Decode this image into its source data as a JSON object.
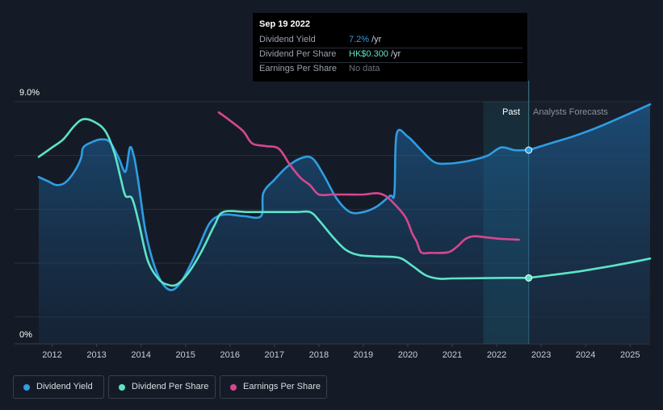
{
  "tooltip": {
    "date": "Sep 19 2022",
    "rows": [
      {
        "label": "Dividend Yield",
        "value": "7.2%",
        "unit": "/yr",
        "color": "#2f9de4"
      },
      {
        "label": "Dividend Per Share",
        "value": "HK$0.300",
        "unit": "/yr",
        "color": "#5de4c7"
      },
      {
        "label": "Earnings Per Share",
        "value": "No data",
        "unit": "",
        "color": "#6b7280"
      }
    ]
  },
  "legend": [
    {
      "label": "Dividend Yield",
      "color": "#2f9de4"
    },
    {
      "label": "Dividend Per Share",
      "color": "#5de4c7"
    },
    {
      "label": "Earnings Per Share",
      "color": "#d6478f"
    }
  ],
  "chart_data": {
    "type": "line",
    "y_top_label": "9.0%",
    "y_bottom_label": "0%",
    "ylim": [
      0,
      9
    ],
    "xlim": [
      2011.7,
      2025.45
    ],
    "x_ticks": [
      "2012",
      "2013",
      "2014",
      "2015",
      "2016",
      "2017",
      "2018",
      "2019",
      "2020",
      "2021",
      "2022",
      "2023",
      "2024",
      "2025"
    ],
    "past_label": "Past",
    "forecast_label": "Analysts Forecasts",
    "forecast_band_start": 2021.7,
    "divider_x": 2022.72,
    "series": [
      {
        "name": "Dividend Yield",
        "color": "#2f9de4",
        "fill": true,
        "points": [
          [
            2011.7,
            6.2
          ],
          [
            2011.9,
            6.05
          ],
          [
            2012.1,
            5.9
          ],
          [
            2012.3,
            6.0
          ],
          [
            2012.5,
            6.4
          ],
          [
            2012.65,
            6.9
          ],
          [
            2012.7,
            7.3
          ],
          [
            2012.9,
            7.5
          ],
          [
            2013.1,
            7.6
          ],
          [
            2013.3,
            7.5
          ],
          [
            2013.5,
            6.9
          ],
          [
            2013.65,
            6.4
          ],
          [
            2013.75,
            7.3
          ],
          [
            2013.85,
            6.9
          ],
          [
            2013.95,
            5.9
          ],
          [
            2014.1,
            4.2
          ],
          [
            2014.3,
            2.9
          ],
          [
            2014.5,
            2.2
          ],
          [
            2014.7,
            2.0
          ],
          [
            2014.9,
            2.3
          ],
          [
            2015.1,
            2.9
          ],
          [
            2015.3,
            3.6
          ],
          [
            2015.55,
            4.5
          ],
          [
            2015.85,
            4.8
          ],
          [
            2016.3,
            4.75
          ],
          [
            2016.7,
            4.75
          ],
          [
            2016.75,
            5.6
          ],
          [
            2017.0,
            6.1
          ],
          [
            2017.3,
            6.6
          ],
          [
            2017.6,
            6.9
          ],
          [
            2017.85,
            6.9
          ],
          [
            2018.1,
            6.3
          ],
          [
            2018.4,
            5.4
          ],
          [
            2018.7,
            4.9
          ],
          [
            2019.0,
            4.9
          ],
          [
            2019.3,
            5.1
          ],
          [
            2019.6,
            5.5
          ],
          [
            2019.7,
            5.6
          ],
          [
            2019.75,
            7.8
          ],
          [
            2020.0,
            7.7
          ],
          [
            2020.3,
            7.2
          ],
          [
            2020.6,
            6.75
          ],
          [
            2020.9,
            6.7
          ],
          [
            2021.2,
            6.75
          ],
          [
            2021.5,
            6.85
          ],
          [
            2021.8,
            7.0
          ],
          [
            2022.1,
            7.3
          ],
          [
            2022.4,
            7.2
          ],
          [
            2022.72,
            7.2
          ]
        ],
        "forecast_points": [
          [
            2022.72,
            7.2
          ],
          [
            2023.2,
            7.45
          ],
          [
            2023.7,
            7.7
          ],
          [
            2024.2,
            8.0
          ],
          [
            2024.7,
            8.35
          ],
          [
            2025.45,
            8.9
          ]
        ],
        "marker": [
          2022.72,
          7.2
        ]
      },
      {
        "name": "Dividend Per Share",
        "color": "#5de4c7",
        "fill": false,
        "points": [
          [
            2011.7,
            6.95
          ],
          [
            2012.0,
            7.3
          ],
          [
            2012.25,
            7.6
          ],
          [
            2012.5,
            8.1
          ],
          [
            2012.7,
            8.35
          ],
          [
            2012.95,
            8.25
          ],
          [
            2013.2,
            7.9
          ],
          [
            2013.4,
            7.1
          ],
          [
            2013.55,
            6.1
          ],
          [
            2013.65,
            5.5
          ],
          [
            2013.8,
            5.4
          ],
          [
            2013.95,
            4.5
          ],
          [
            2014.15,
            3.1
          ],
          [
            2014.4,
            2.4
          ],
          [
            2014.6,
            2.2
          ],
          [
            2014.8,
            2.2
          ],
          [
            2015.05,
            2.6
          ],
          [
            2015.35,
            3.4
          ],
          [
            2015.65,
            4.4
          ],
          [
            2015.85,
            4.9
          ],
          [
            2016.4,
            4.9
          ],
          [
            2017.0,
            4.9
          ],
          [
            2017.5,
            4.9
          ],
          [
            2017.8,
            4.9
          ],
          [
            2018.0,
            4.6
          ],
          [
            2018.3,
            4.0
          ],
          [
            2018.6,
            3.5
          ],
          [
            2018.9,
            3.3
          ],
          [
            2019.3,
            3.25
          ],
          [
            2019.8,
            3.2
          ],
          [
            2020.1,
            2.9
          ],
          [
            2020.4,
            2.55
          ],
          [
            2020.7,
            2.42
          ],
          [
            2021.0,
            2.43
          ],
          [
            2021.6,
            2.44
          ],
          [
            2022.2,
            2.45
          ],
          [
            2022.72,
            2.45
          ]
        ],
        "forecast_points": [
          [
            2022.72,
            2.45
          ],
          [
            2023.2,
            2.55
          ],
          [
            2023.8,
            2.68
          ],
          [
            2024.4,
            2.84
          ],
          [
            2025.0,
            3.02
          ],
          [
            2025.45,
            3.17
          ]
        ],
        "marker": [
          2022.72,
          2.45
        ]
      },
      {
        "name": "Earnings Per Share",
        "color": "#d6478f",
        "fill": false,
        "points": [
          [
            2015.75,
            8.6
          ],
          [
            2016.0,
            8.3
          ],
          [
            2016.3,
            7.9
          ],
          [
            2016.5,
            7.45
          ],
          [
            2016.8,
            7.35
          ],
          [
            2017.1,
            7.25
          ],
          [
            2017.35,
            6.65
          ],
          [
            2017.6,
            6.15
          ],
          [
            2017.8,
            5.9
          ],
          [
            2018.0,
            5.55
          ],
          [
            2018.3,
            5.55
          ],
          [
            2018.6,
            5.55
          ],
          [
            2019.0,
            5.55
          ],
          [
            2019.3,
            5.6
          ],
          [
            2019.5,
            5.5
          ],
          [
            2019.7,
            5.2
          ],
          [
            2019.95,
            4.7
          ],
          [
            2020.1,
            4.1
          ],
          [
            2020.2,
            3.8
          ],
          [
            2020.3,
            3.4
          ],
          [
            2020.5,
            3.38
          ],
          [
            2020.9,
            3.4
          ],
          [
            2021.1,
            3.6
          ],
          [
            2021.3,
            3.9
          ],
          [
            2021.5,
            4.0
          ],
          [
            2021.8,
            3.95
          ],
          [
            2022.1,
            3.9
          ],
          [
            2022.5,
            3.87
          ]
        ]
      }
    ]
  }
}
